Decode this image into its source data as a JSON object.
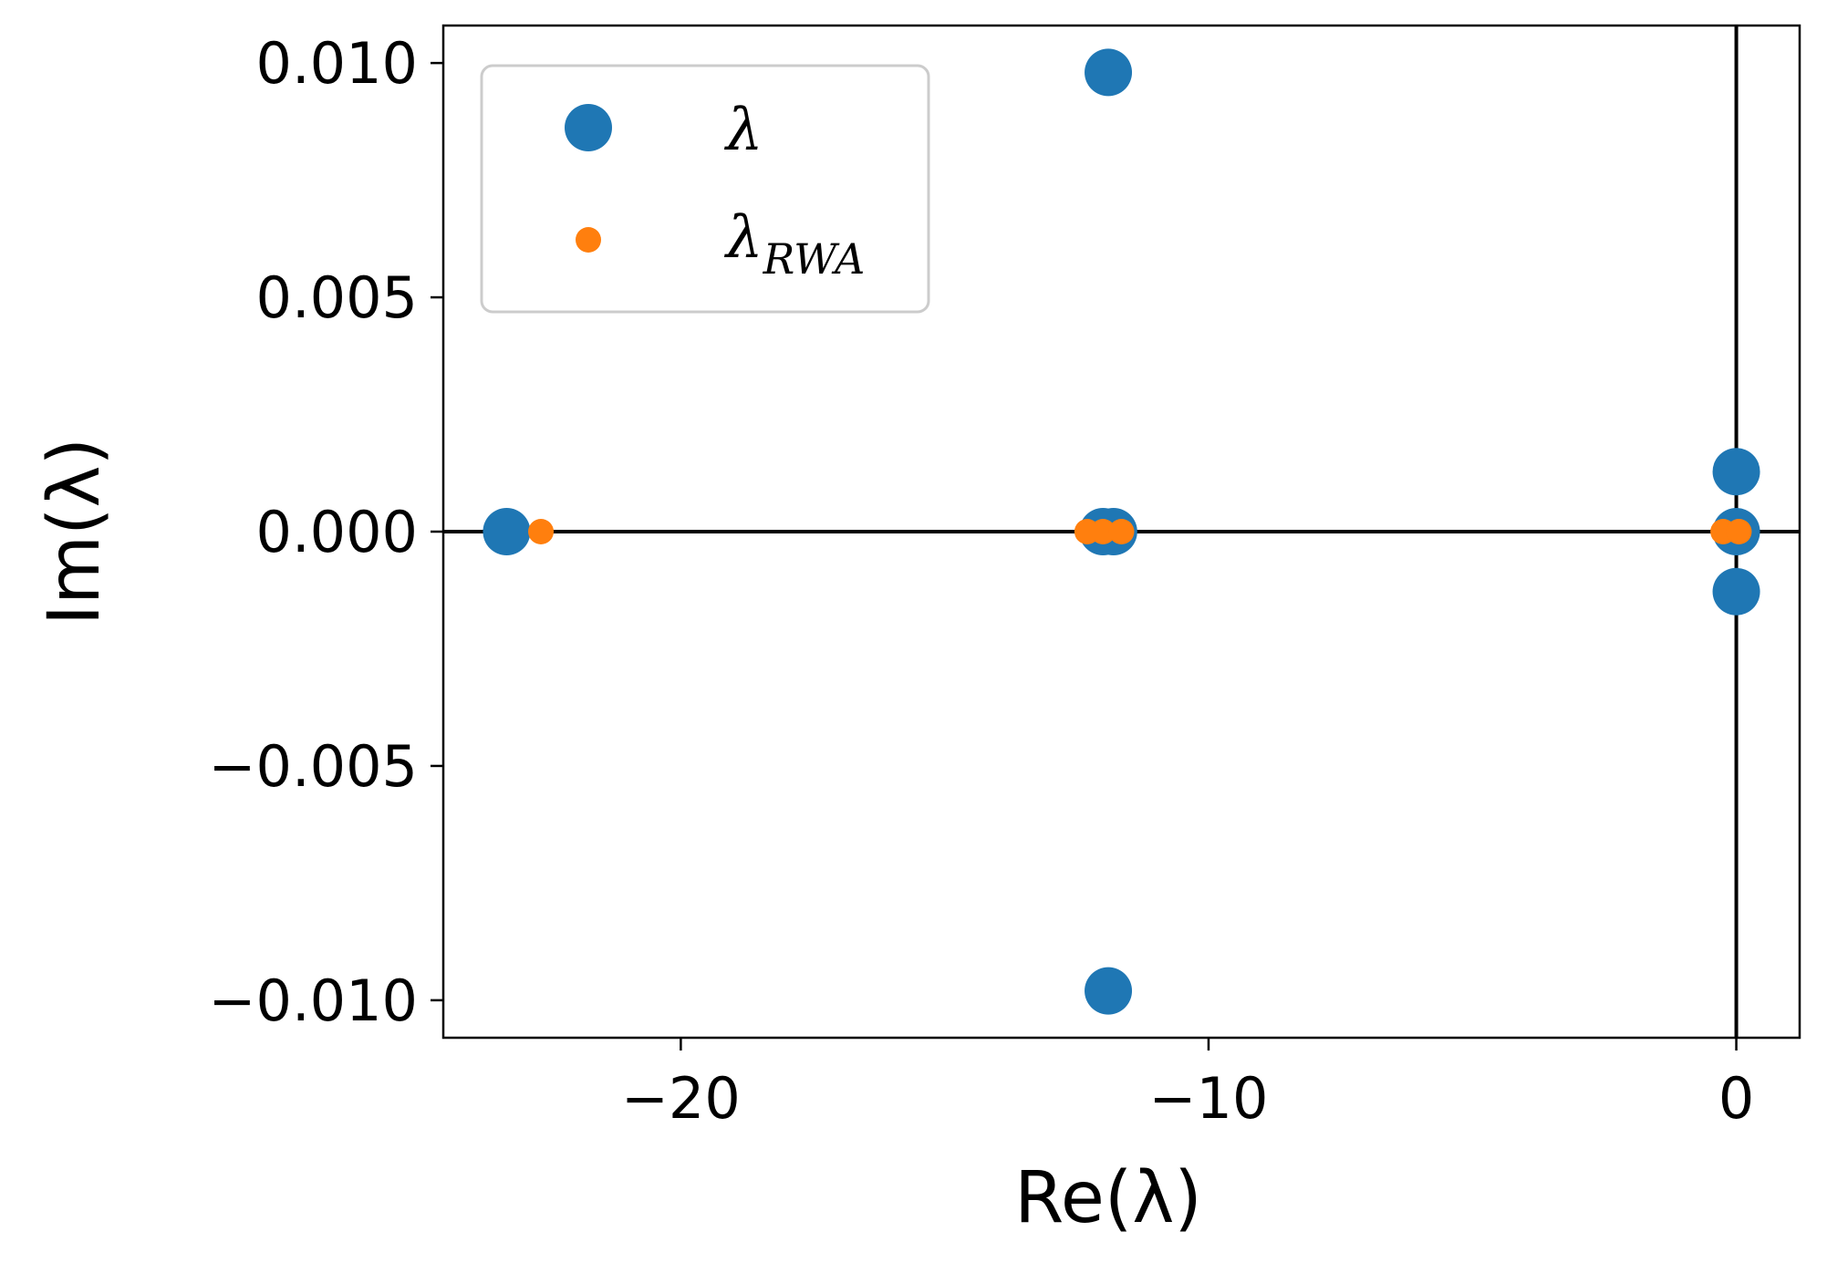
{
  "chart_data": {
    "type": "scatter",
    "xlabel": "Re(λ)",
    "ylabel": "Im(λ)",
    "xlim": [
      -24.5,
      1.2
    ],
    "ylim": [
      -0.0108,
      0.0108
    ],
    "xticks": [
      -20,
      -10,
      0
    ],
    "xtick_labels": [
      "−20",
      "−10",
      "0"
    ],
    "yticks": [
      0.01,
      0.005,
      0.0,
      -0.005,
      -0.01
    ],
    "ytick_labels": [
      "0.010",
      "0.005",
      "0.000",
      "−0.005",
      "−0.010"
    ],
    "reference_lines": {
      "x": 0,
      "y": 0
    },
    "grid": false,
    "legend_position": "upper-left",
    "series": [
      {
        "name": "λ",
        "color": "#1f77b4",
        "marker": "large-circle",
        "points": [
          {
            "x": -23.3,
            "y": 0.0
          },
          {
            "x": -11.9,
            "y": 0.0098
          },
          {
            "x": -11.9,
            "y": -0.0098
          },
          {
            "x": -12.0,
            "y": 0.0
          },
          {
            "x": -11.8,
            "y": 0.0
          },
          {
            "x": 0.0,
            "y": 0.00128
          },
          {
            "x": 0.0,
            "y": 0.0
          },
          {
            "x": 0.0,
            "y": -0.00128
          }
        ]
      },
      {
        "name": "λ_RWA",
        "name_main": "λ",
        "name_sub": "RWA",
        "color": "#ff7f0e",
        "marker": "small-circle",
        "points": [
          {
            "x": -22.65,
            "y": 0.0
          },
          {
            "x": -12.3,
            "y": 0.0
          },
          {
            "x": -12.0,
            "y": 0.0
          },
          {
            "x": -11.65,
            "y": 0.0
          },
          {
            "x": -0.25,
            "y": 0.0
          },
          {
            "x": 0.05,
            "y": 0.0
          }
        ]
      }
    ]
  }
}
